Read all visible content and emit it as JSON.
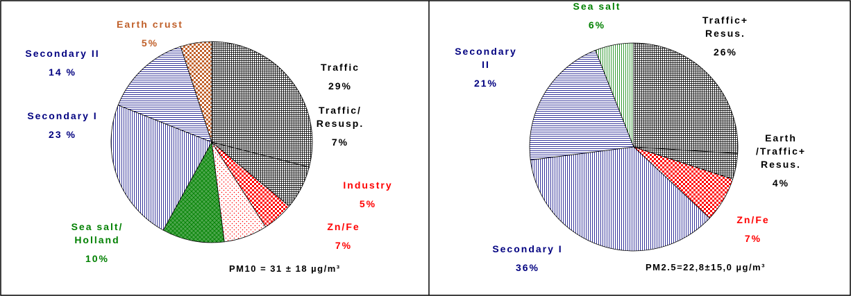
{
  "chart_data": [
    {
      "type": "pie",
      "categories": [
        "Traffic",
        "Traffic/\nResusp.",
        "Industry",
        "Zn/Fe",
        "Sea salt/\nHolland",
        "Secondary I",
        "Secondary II",
        "Earth crust"
      ],
      "values": [
        29,
        7,
        5,
        7,
        10,
        23,
        14,
        5
      ],
      "value_labels": [
        "29%",
        "7%",
        "5%",
        "7%",
        "10%",
        "23 %",
        "14 %",
        "5%"
      ],
      "colors": [
        "#000000",
        "#000000",
        "#ff0000",
        "#ff0000",
        "#008000",
        "#000080",
        "#000080",
        "#c0602a"
      ],
      "patterns": [
        "grid",
        "grid",
        "check",
        "dots",
        "cross",
        "vlines",
        "hlines",
        "check"
      ],
      "note": "PM10 = 31 ± 18 µg/m³"
    },
    {
      "type": "pie",
      "categories": [
        "Traffic+\nResus.",
        "Earth\n/Traffic+\nResus.",
        "Zn/Fe",
        "Secondary I",
        "Secondary\nII",
        "Sea salt"
      ],
      "values": [
        26,
        4,
        7,
        36,
        21,
        6
      ],
      "value_labels": [
        "26%",
        "4%",
        "7%",
        "36%",
        "21%",
        "6%"
      ],
      "colors": [
        "#000000",
        "#000000",
        "#ff0000",
        "#000080",
        "#000080",
        "#008000"
      ],
      "patterns": [
        "grid",
        "grid",
        "check",
        "vlines",
        "hlines",
        "vlines"
      ],
      "note": "PM2.5=22,8±15,0 µg/m³"
    }
  ]
}
